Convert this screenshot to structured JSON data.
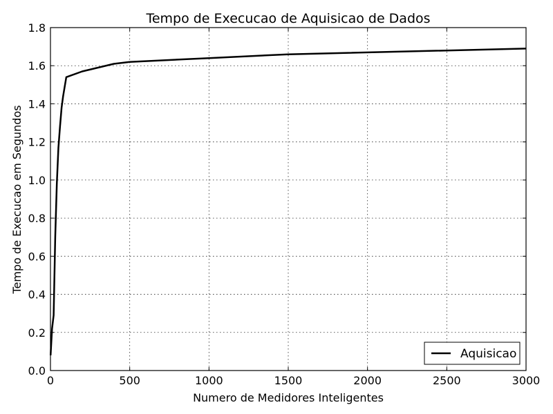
{
  "chart_data": {
    "type": "line",
    "title": "Tempo de Execucao de Aquisicao de Dados",
    "xlabel": "Numero de Medidores Inteligentes",
    "ylabel": "Tempo de Execucao em Segundos",
    "xlim": [
      0,
      3000
    ],
    "ylim": [
      0.0,
      1.8
    ],
    "xticks": [
      "0",
      "500",
      "1000",
      "1500",
      "2000",
      "2500",
      "3000"
    ],
    "yticks": [
      "0.0",
      "0.2",
      "0.4",
      "0.6",
      "0.8",
      "1.0",
      "1.2",
      "1.4",
      "1.6",
      "1.8"
    ],
    "grid": true,
    "legend_position": "bottom-right",
    "series": [
      {
        "name": "Aquisicao",
        "color": "#000000",
        "x": [
          1,
          10,
          20,
          30,
          40,
          50,
          60,
          70,
          80,
          90,
          100,
          200,
          300,
          400,
          500,
          1000,
          1500,
          3000
        ],
        "y": [
          0.08,
          0.22,
          0.29,
          0.7,
          0.98,
          1.17,
          1.28,
          1.38,
          1.44,
          1.49,
          1.54,
          1.57,
          1.59,
          1.61,
          1.62,
          1.64,
          1.66,
          1.69
        ]
      }
    ]
  }
}
